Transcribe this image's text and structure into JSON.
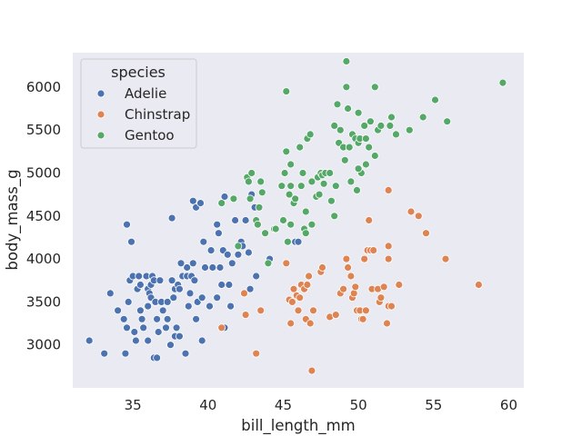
{
  "chart_data": {
    "type": "scatter",
    "xlabel": "bill_length_mm",
    "ylabel": "body_mass_g",
    "xlim": [
      31,
      61
    ],
    "ylim": [
      2500,
      6400
    ],
    "xticks": [
      35,
      40,
      45,
      50,
      55,
      60
    ],
    "yticks": [
      3000,
      3500,
      4000,
      4500,
      5000,
      5500,
      6000
    ],
    "grid": false,
    "background": "#eaeaf2",
    "legend": {
      "title": "species",
      "placement": "top-left"
    },
    "series": [
      {
        "name": "Adelie",
        "color": "#4c72b0",
        "points": [
          [
            32.1,
            3050
          ],
          [
            33.1,
            2900
          ],
          [
            33.5,
            3600
          ],
          [
            34.0,
            3400
          ],
          [
            34.4,
            3300
          ],
          [
            34.5,
            2900
          ],
          [
            34.6,
            4400
          ],
          [
            34.6,
            3200
          ],
          [
            34.7,
            3500
          ],
          [
            34.8,
            3750
          ],
          [
            34.9,
            4200
          ],
          [
            35.0,
            3800
          ],
          [
            35.1,
            3150
          ],
          [
            35.2,
            3050
          ],
          [
            35.3,
            3650
          ],
          [
            35.4,
            3800
          ],
          [
            35.5,
            3700
          ],
          [
            35.5,
            3400
          ],
          [
            35.6,
            3300
          ],
          [
            35.7,
            3200
          ],
          [
            35.9,
            3800
          ],
          [
            36.0,
            3650
          ],
          [
            36.0,
            3450
          ],
          [
            36.0,
            3050
          ],
          [
            36.1,
            3600
          ],
          [
            36.2,
            3700
          ],
          [
            36.2,
            3550
          ],
          [
            36.3,
            3800
          ],
          [
            36.4,
            2850
          ],
          [
            36.4,
            3750
          ],
          [
            36.5,
            3500
          ],
          [
            36.6,
            3300
          ],
          [
            36.6,
            2850
          ],
          [
            36.7,
            3150
          ],
          [
            36.8,
            3750
          ],
          [
            36.9,
            3500
          ],
          [
            37.0,
            3400
          ],
          [
            37.2,
            3200
          ],
          [
            37.3,
            3300
          ],
          [
            37.3,
            3500
          ],
          [
            37.5,
            3000
          ],
          [
            37.6,
            3750
          ],
          [
            37.6,
            4475
          ],
          [
            37.7,
            3550
          ],
          [
            37.8,
            3650
          ],
          [
            37.8,
            3100
          ],
          [
            37.9,
            3200
          ],
          [
            38.0,
            3700
          ],
          [
            38.1,
            3100
          ],
          [
            38.1,
            3650
          ],
          [
            38.2,
            3950
          ],
          [
            38.3,
            3800
          ],
          [
            38.5,
            2900
          ],
          [
            38.6,
            3800
          ],
          [
            38.6,
            3900
          ],
          [
            38.7,
            3450
          ],
          [
            38.8,
            3600
          ],
          [
            38.9,
            3800
          ],
          [
            39.0,
            3950
          ],
          [
            39.0,
            4675
          ],
          [
            39.1,
            3750
          ],
          [
            39.2,
            4600
          ],
          [
            39.2,
            3300
          ],
          [
            39.3,
            3500
          ],
          [
            39.5,
            4650
          ],
          [
            39.6,
            3550
          ],
          [
            39.6,
            3050
          ],
          [
            39.7,
            4200
          ],
          [
            39.8,
            3900
          ],
          [
            40.1,
            3450
          ],
          [
            40.2,
            4100
          ],
          [
            40.3,
            3900
          ],
          [
            40.6,
            3550
          ],
          [
            40.6,
            4400
          ],
          [
            40.7,
            4300
          ],
          [
            40.8,
            3900
          ],
          [
            40.9,
            3700
          ],
          [
            41.0,
            4100
          ],
          [
            41.1,
            3200
          ],
          [
            41.1,
            4725
          ],
          [
            41.3,
            4050
          ],
          [
            41.4,
            3700
          ],
          [
            41.5,
            3450
          ],
          [
            41.6,
            3950
          ],
          [
            41.8,
            4450
          ],
          [
            42.0,
            4050
          ],
          [
            42.2,
            4200
          ],
          [
            42.3,
            4150
          ],
          [
            42.5,
            4450
          ],
          [
            42.7,
            4075
          ],
          [
            42.8,
            3650
          ],
          [
            42.9,
            4750
          ],
          [
            43.1,
            4600
          ],
          [
            43.2,
            3800
          ],
          [
            44.1,
            4000
          ],
          [
            45.8,
            4200
          ],
          [
            46.0,
            4200
          ]
        ]
      },
      {
        "name": "Chinstrap",
        "color": "#dd8452",
        "points": [
          [
            40.9,
            3200
          ],
          [
            42.4,
            3600
          ],
          [
            42.5,
            3350
          ],
          [
            43.2,
            2900
          ],
          [
            43.5,
            3400
          ],
          [
            45.2,
            3950
          ],
          [
            45.4,
            3525
          ],
          [
            45.5,
            3250
          ],
          [
            45.6,
            3500
          ],
          [
            45.7,
            3650
          ],
          [
            45.9,
            3575
          ],
          [
            46.0,
            3400
          ],
          [
            46.1,
            3550
          ],
          [
            46.2,
            3700
          ],
          [
            46.4,
            3650
          ],
          [
            46.5,
            3300
          ],
          [
            46.6,
            3700
          ],
          [
            46.7,
            3800
          ],
          [
            46.8,
            3250
          ],
          [
            46.9,
            2700
          ],
          [
            47.0,
            3400
          ],
          [
            47.5,
            3850
          ],
          [
            47.6,
            3900
          ],
          [
            48.1,
            3325
          ],
          [
            48.5,
            3350
          ],
          [
            48.8,
            3600
          ],
          [
            49.0,
            3650
          ],
          [
            49.2,
            4000
          ],
          [
            49.3,
            3900
          ],
          [
            49.5,
            3800
          ],
          [
            49.6,
            3550
          ],
          [
            49.7,
            3600
          ],
          [
            49.8,
            3675
          ],
          [
            49.9,
            3400
          ],
          [
            50.1,
            3400
          ],
          [
            50.2,
            3300
          ],
          [
            50.3,
            3300
          ],
          [
            50.4,
            4000
          ],
          [
            50.5,
            3400
          ],
          [
            50.6,
            4100
          ],
          [
            50.7,
            4450
          ],
          [
            50.8,
            4100
          ],
          [
            50.9,
            3650
          ],
          [
            51.0,
            4100
          ],
          [
            51.3,
            3650
          ],
          [
            51.4,
            3500
          ],
          [
            51.5,
            3550
          ],
          [
            51.7,
            3675
          ],
          [
            51.9,
            3250
          ],
          [
            52.0,
            3450
          ],
          [
            52.0,
            4000
          ],
          [
            52.0,
            4150
          ],
          [
            52.0,
            4800
          ],
          [
            52.2,
            3450
          ],
          [
            52.7,
            3700
          ],
          [
            53.5,
            4550
          ],
          [
            54.0,
            4500
          ],
          [
            54.5,
            4300
          ],
          [
            55.8,
            4000
          ],
          [
            58.0,
            3700
          ]
        ]
      },
      {
        "name": "Gentoo",
        "color": "#55a868",
        "points": [
          [
            40.9,
            4650
          ],
          [
            41.7,
            4700
          ],
          [
            42.0,
            4150
          ],
          [
            42.6,
            4950
          ],
          [
            42.7,
            4900
          ],
          [
            42.8,
            4700
          ],
          [
            42.9,
            5000
          ],
          [
            43.2,
            4450
          ],
          [
            43.3,
            4400
          ],
          [
            43.4,
            4600
          ],
          [
            43.5,
            4900
          ],
          [
            43.6,
            4775
          ],
          [
            43.8,
            4300
          ],
          [
            44.0,
            3950
          ],
          [
            44.4,
            4350
          ],
          [
            44.5,
            4350
          ],
          [
            44.9,
            4850
          ],
          [
            45.0,
            4450
          ],
          [
            45.1,
            5000
          ],
          [
            45.2,
            5250
          ],
          [
            45.2,
            5950
          ],
          [
            45.3,
            4200
          ],
          [
            45.4,
            4750
          ],
          [
            45.5,
            4850
          ],
          [
            45.5,
            5100
          ],
          [
            45.5,
            4400
          ],
          [
            45.7,
            4650
          ],
          [
            45.8,
            4700
          ],
          [
            46.1,
            5300
          ],
          [
            46.2,
            4850
          ],
          [
            46.3,
            5000
          ],
          [
            46.4,
            4350
          ],
          [
            46.5,
            4550
          ],
          [
            46.6,
            5400
          ],
          [
            46.8,
            5450
          ],
          [
            46.9,
            4900
          ],
          [
            47.2,
            4725
          ],
          [
            47.3,
            4950
          ],
          [
            47.4,
            4750
          ],
          [
            47.5,
            5000
          ],
          [
            47.6,
            4975
          ],
          [
            47.7,
            4875
          ],
          [
            47.8,
            5000
          ],
          [
            48.1,
            5000
          ],
          [
            48.2,
            4675
          ],
          [
            48.4,
            4500
          ],
          [
            48.4,
            5550
          ],
          [
            48.5,
            4850
          ],
          [
            48.6,
            5800
          ],
          [
            48.7,
            5350
          ],
          [
            48.8,
            5500
          ],
          [
            49.0,
            5300
          ],
          [
            49.1,
            5150
          ],
          [
            49.2,
            6000
          ],
          [
            49.3,
            5750
          ],
          [
            49.5,
            4900
          ],
          [
            49.6,
            5450
          ],
          [
            49.8,
            5400
          ],
          [
            49.9,
            4800
          ],
          [
            50.0,
            5700
          ],
          [
            50.0,
            5350
          ],
          [
            50.1,
            5400
          ],
          [
            50.2,
            5000
          ],
          [
            50.4,
            5550
          ],
          [
            50.5,
            5400
          ],
          [
            50.5,
            5100
          ],
          [
            50.7,
            5300
          ],
          [
            50.8,
            5600
          ],
          [
            51.1,
            5200
          ],
          [
            51.3,
            5500
          ],
          [
            51.5,
            5550
          ],
          [
            52.1,
            5550
          ],
          [
            52.2,
            5650
          ],
          [
            52.5,
            5450
          ],
          [
            53.4,
            5500
          ],
          [
            54.3,
            5650
          ],
          [
            55.1,
            5850
          ],
          [
            55.9,
            5600
          ],
          [
            59.6,
            6050
          ],
          [
            49.2,
            6300
          ],
          [
            51.1,
            6000
          ],
          [
            50.0,
            5050
          ],
          [
            49.4,
            5300
          ],
          [
            46.5,
            4300
          ],
          [
            46.9,
            4400
          ]
        ]
      }
    ]
  }
}
